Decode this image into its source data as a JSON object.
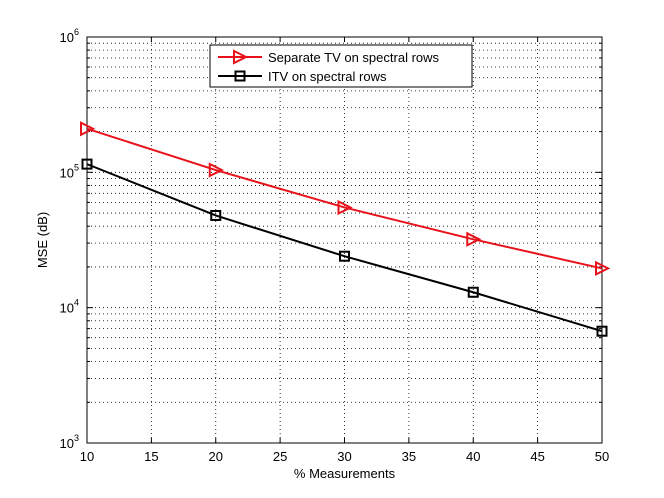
{
  "chart_data": {
    "type": "line",
    "title": "",
    "xlabel": "% Measurements",
    "ylabel": "MSE (dB)",
    "xlim": [
      10,
      50
    ],
    "ylim": [
      1000,
      1000000
    ],
    "yscale": "log",
    "grid": true,
    "legend_position": "top-center",
    "x_ticks": [
      "10",
      "15",
      "20",
      "25",
      "30",
      "35",
      "40",
      "45",
      "50"
    ],
    "y_ticks": [
      {
        "base": "10",
        "exp": "3"
      },
      {
        "base": "10",
        "exp": "4"
      },
      {
        "base": "10",
        "exp": "5"
      },
      {
        "base": "10",
        "exp": "6"
      }
    ],
    "x": [
      10,
      20,
      30,
      40,
      50
    ],
    "series": [
      {
        "name": "Separate TV on spectral rows",
        "values": [
          210000,
          104000,
          55000,
          32000,
          19500
        ],
        "color": "#e8121a",
        "marker": "triangle-right"
      },
      {
        "name": "ITV on spectral rows",
        "values": [
          115000,
          48000,
          24000,
          13000,
          6700
        ],
        "color": "#000000",
        "marker": "square"
      }
    ]
  }
}
